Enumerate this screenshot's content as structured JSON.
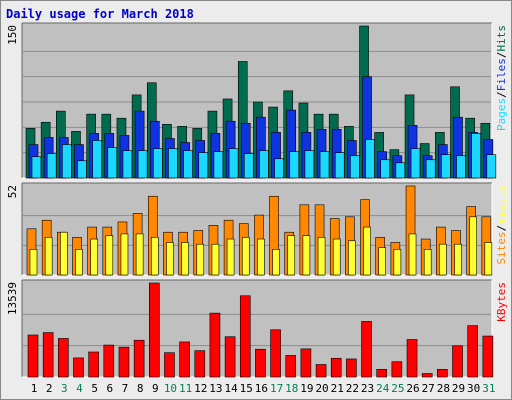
{
  "title": "Daily usage for March 2018",
  "colors": {
    "panel_bg": "#c0c0c0",
    "hits": "#006b4f",
    "files": "#0f33e0",
    "pages": "#1ad8ff",
    "visits": "#ff8800",
    "sites": "#ffff33",
    "kbytes": "#ff0000",
    "title": "#0000cc",
    "weekend_day": "#00805a"
  },
  "chart_data": [
    {
      "type": "bar",
      "title": "Daily usage for March 2018",
      "y_max_label": "150",
      "ylim": [
        0,
        150
      ],
      "legend": [
        "Pages",
        "/",
        "Files",
        "/",
        "Hits"
      ],
      "categories": [
        "1",
        "2",
        "3",
        "4",
        "5",
        "6",
        "7",
        "8",
        "9",
        "10",
        "11",
        "12",
        "13",
        "14",
        "15",
        "16",
        "17",
        "18",
        "19",
        "20",
        "21",
        "22",
        "23",
        "24",
        "25",
        "26",
        "27",
        "28",
        "29",
        "30",
        "31"
      ],
      "series": [
        {
          "name": "Hits",
          "values": [
            49,
            55,
            66,
            46,
            63,
            63,
            59,
            82,
            94,
            53,
            51,
            49,
            66,
            78,
            115,
            75,
            70,
            86,
            74,
            63,
            63,
            51,
            150,
            45,
            28,
            82,
            34,
            45,
            90,
            59,
            54
          ]
        },
        {
          "name": "Files",
          "values": [
            33,
            40,
            40,
            33,
            44,
            44,
            42,
            66,
            56,
            39,
            35,
            37,
            44,
            56,
            54,
            60,
            45,
            67,
            45,
            48,
            48,
            37,
            100,
            26,
            22,
            52,
            22,
            33,
            60,
            45,
            38
          ]
        },
        {
          "name": "Pages",
          "values": [
            21,
            24,
            33,
            17,
            37,
            30,
            27,
            27,
            29,
            29,
            27,
            25,
            26,
            29,
            24,
            27,
            19,
            26,
            27,
            26,
            25,
            22,
            38,
            18,
            15,
            29,
            18,
            23,
            22,
            44,
            23
          ]
        }
      ]
    },
    {
      "type": "bar",
      "y_max_label": "52",
      "ylim": [
        0,
        52
      ],
      "legend": [
        "Sites",
        "/",
        "Visits"
      ],
      "categories": [
        "1",
        "2",
        "3",
        "4",
        "5",
        "6",
        "7",
        "8",
        "9",
        "10",
        "11",
        "12",
        "13",
        "14",
        "15",
        "16",
        "17",
        "18",
        "19",
        "20",
        "21",
        "22",
        "23",
        "24",
        "25",
        "26",
        "27",
        "28",
        "29",
        "30",
        "31"
      ],
      "series": [
        {
          "name": "Visits",
          "values": [
            27,
            32,
            25,
            22,
            28,
            28,
            31,
            36,
            46,
            25,
            25,
            26,
            29,
            32,
            30,
            35,
            46,
            25,
            41,
            41,
            33,
            34,
            44,
            22,
            19,
            52,
            21,
            28,
            26,
            40,
            34
          ]
        },
        {
          "name": "Sites",
          "values": [
            15,
            22,
            25,
            15,
            21,
            23,
            24,
            24,
            22,
            19,
            19,
            18,
            18,
            21,
            22,
            21,
            15,
            23,
            23,
            22,
            21,
            20,
            28,
            16,
            15,
            24,
            15,
            18,
            18,
            34,
            19
          ]
        }
      ]
    },
    {
      "type": "bar",
      "y_max_label": "13539",
      "ylim": [
        0,
        13539
      ],
      "legend": [
        "KBytes"
      ],
      "categories": [
        "1",
        "2",
        "3",
        "4",
        "5",
        "6",
        "7",
        "8",
        "9",
        "10",
        "11",
        "12",
        "13",
        "14",
        "15",
        "16",
        "17",
        "18",
        "19",
        "20",
        "21",
        "22",
        "23",
        "24",
        "25",
        "26",
        "27",
        "28",
        "29",
        "30",
        "31"
      ],
      "series": [
        {
          "name": "KBytes",
          "values": [
            6050,
            6400,
            5550,
            2750,
            3600,
            4600,
            4300,
            5300,
            13539,
            3500,
            5050,
            3800,
            9200,
            5800,
            11700,
            4000,
            6800,
            3100,
            4050,
            1800,
            2700,
            2600,
            8000,
            1100,
            2200,
            5400,
            500,
            1100,
            4500,
            7400,
            5900
          ]
        }
      ]
    }
  ],
  "x_axis": {
    "days": [
      "1",
      "2",
      "3",
      "4",
      "5",
      "6",
      "7",
      "8",
      "9",
      "10",
      "11",
      "12",
      "13",
      "14",
      "15",
      "16",
      "17",
      "18",
      "19",
      "20",
      "21",
      "22",
      "23",
      "24",
      "25",
      "26",
      "27",
      "28",
      "29",
      "30",
      "31"
    ],
    "weekend_days": [
      "3",
      "4",
      "10",
      "11",
      "17",
      "18",
      "24",
      "25",
      "31"
    ]
  }
}
